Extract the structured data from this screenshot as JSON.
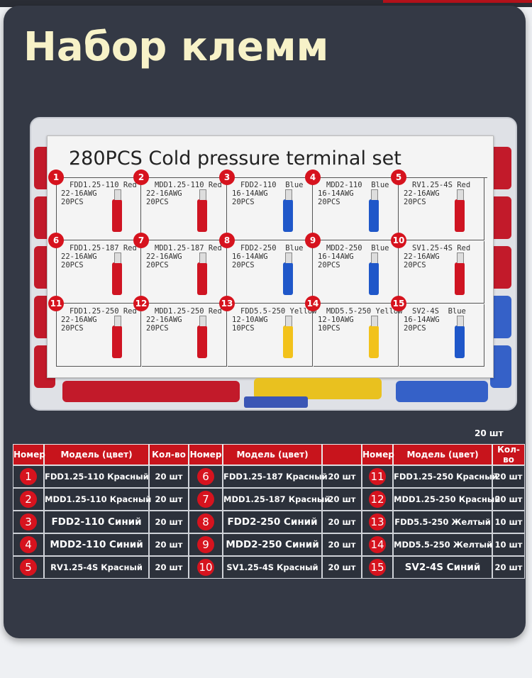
{
  "title": "Набор клемм",
  "box": {
    "sheet_title": "280PCS  Cold pressure terminal set",
    "cells": [
      {
        "n": "1",
        "l1": "FDD1.25-110 Red",
        "l2": "22-16AWG",
        "l3": "20PCS",
        "color": "#cf1422"
      },
      {
        "n": "2",
        "l1": "MDD1.25-110 Red",
        "l2": "22-16AWG",
        "l3": "20PCS",
        "color": "#cf1422"
      },
      {
        "n": "3",
        "l1": "FDD2-110  Blue",
        "l2": "16-14AWG",
        "l3": "20PCS",
        "color": "#1f57c9"
      },
      {
        "n": "4",
        "l1": "MDD2-110  Blue",
        "l2": "16-14AWG",
        "l3": "20PCS",
        "color": "#1f57c9"
      },
      {
        "n": "5",
        "l1": "RV1.25-4S Red",
        "l2": "22-16AWG",
        "l3": "20PCS",
        "color": "#cf1422"
      },
      {
        "n": "6",
        "l1": "FDD1.25-187 Red",
        "l2": "22-16AWG",
        "l3": "20PCS",
        "color": "#cf1422"
      },
      {
        "n": "7",
        "l1": "MDD1.25-187 Red",
        "l2": "22-16AWG",
        "l3": "20PCS",
        "color": "#cf1422"
      },
      {
        "n": "8",
        "l1": "FDD2-250  Blue",
        "l2": "16-14AWG",
        "l3": "20PCS",
        "color": "#1f57c9"
      },
      {
        "n": "9",
        "l1": "MDD2-250  Blue",
        "l2": "16-14AWG",
        "l3": "20PCS",
        "color": "#1f57c9"
      },
      {
        "n": "10",
        "l1": "SV1.25-4S Red",
        "l2": "22-16AWG",
        "l3": "20PCS",
        "color": "#cf1422"
      },
      {
        "n": "11",
        "l1": "FDD1.25-250 Red",
        "l2": "22-16AWG",
        "l3": "20PCS",
        "color": "#cf1422"
      },
      {
        "n": "12",
        "l1": "MDD1.25-250 Red",
        "l2": "22-16AWG",
        "l3": "20PCS",
        "color": "#cf1422"
      },
      {
        "n": "13",
        "l1": "FDD5.5-250 Yellow",
        "l2": "12-10AWG",
        "l3": "10PCS",
        "color": "#f2c21b"
      },
      {
        "n": "14",
        "l1": "MDD5.5-250 Yellow",
        "l2": "12-10AWG",
        "l3": "10PCS",
        "color": "#f2c21b"
      },
      {
        "n": "15",
        "l1": "SV2-4S  Blue",
        "l2": "16-14AWG",
        "l3": "20PCS",
        "color": "#1f57c9"
      }
    ]
  },
  "note": "20 шт",
  "table": {
    "headers": [
      "Номер",
      "Модель (цвет)",
      "Кол-во",
      "Номер",
      "Модель (цвет)",
      "",
      "Номер",
      "Модель (цвет)",
      "Кол-во"
    ],
    "rows": [
      [
        {
          "n": "1",
          "m": "FDD1.25-110 Красный",
          "q": "20 шт"
        },
        {
          "n": "6",
          "m": "FDD1.25-187 Красный",
          "q": "20 шт"
        },
        {
          "n": "11",
          "m": "FDD1.25-250 Красный",
          "q": "20 шт"
        }
      ],
      [
        {
          "n": "2",
          "m": "MDD1.25-110 Красный",
          "q": "20 шт"
        },
        {
          "n": "7",
          "m": "MDD1.25-187 Красный",
          "q": "20 шт"
        },
        {
          "n": "12",
          "m": "MDD1.25-250 Красный",
          "q": "20 шт"
        }
      ],
      [
        {
          "n": "3",
          "m": "FDD2-110 Синий",
          "q": "20 шт"
        },
        {
          "n": "8",
          "m": "FDD2-250 Синий",
          "q": "20 шт"
        },
        {
          "n": "13",
          "m": "FDD5.5-250 Желтый",
          "q": "10 шт"
        }
      ],
      [
        {
          "n": "4",
          "m": "MDD2-110 Синий",
          "q": "20 шт"
        },
        {
          "n": "9",
          "m": "MDD2-250 Синий",
          "q": "20 шт"
        },
        {
          "n": "14",
          "m": "MDD5.5-250 Желтый",
          "q": "10 шт"
        }
      ],
      [
        {
          "n": "5",
          "m": "RV1.25-4S Красный",
          "q": "20 шт"
        },
        {
          "n": "10",
          "m": "SV1.25-4S Красный",
          "q": "20 шт"
        },
        {
          "n": "15",
          "m": "SV2-4S Синий",
          "q": "20 шт"
        }
      ]
    ]
  }
}
